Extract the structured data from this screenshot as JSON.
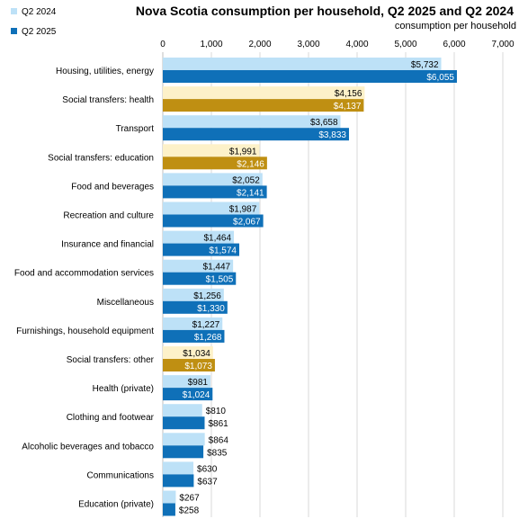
{
  "chart_data": {
    "type": "bar",
    "orientation": "horizontal",
    "title": "Nova Scotia consumption  per household,  Q2 2025 and Q2 2024",
    "subtitle": "consumption per household",
    "xlim": [
      0,
      7000
    ],
    "xticks": [
      0,
      1000,
      2000,
      3000,
      4000,
      5000,
      6000,
      7000
    ],
    "xtick_labels": [
      "0",
      "1,000",
      "2,000",
      "3,000",
      "4,000",
      "5,000",
      "6,000",
      "7,000"
    ],
    "grid": true,
    "legend_position": "top-left",
    "categories": [
      "Housing, utilities, energy",
      "Social transfers: health",
      "Transport",
      "Social transfers: education",
      "Food and beverages",
      "Recreation and culture",
      "Insurance and financial",
      "Food and accommodation services",
      "Miscellaneous",
      "Furnishings, household equipment",
      "Social transfers: other",
      "Health (private)",
      "Clothing and footwear",
      "Alcoholic beverages and tobacco",
      "Communications",
      "Education (private)"
    ],
    "series": [
      {
        "name": "Q2 2024",
        "color": "#BDE1F7",
        "values": [
          5732,
          4156,
          3658,
          1991,
          2052,
          1987,
          1464,
          1447,
          1256,
          1227,
          1034,
          981,
          810,
          864,
          630,
          267
        ],
        "labels": [
          "$5,732",
          "$4,156",
          "$3,658",
          "$1,991",
          "$2,052",
          "$1,987",
          "$1,464",
          "$1,447",
          "$1,256",
          "$1,227",
          "$1,034",
          "$981",
          "$810",
          "$864",
          "$630",
          "$267"
        ]
      },
      {
        "name": "Q2 2025",
        "color": "#0F70B8",
        "values": [
          6055,
          4137,
          3833,
          2146,
          2141,
          2067,
          1574,
          1505,
          1330,
          1268,
          1073,
          1024,
          861,
          835,
          637,
          258
        ],
        "labels": [
          "$6,055",
          "$4,137",
          "$3,833",
          "$2,146",
          "$2,141",
          "$2,067",
          "$1,574",
          "$1,505",
          "$1,330",
          "$1,268",
          "$1,073",
          "$1,024",
          "$861",
          "$835",
          "$637",
          "$258"
        ]
      }
    ],
    "highlight_categories": [
      "Social transfers: health",
      "Social transfers: education",
      "Social transfers: other"
    ],
    "highlight_colors": {
      "Q2 2024": "#FDF1C9",
      "Q2 2025": "#BF8F12"
    }
  }
}
